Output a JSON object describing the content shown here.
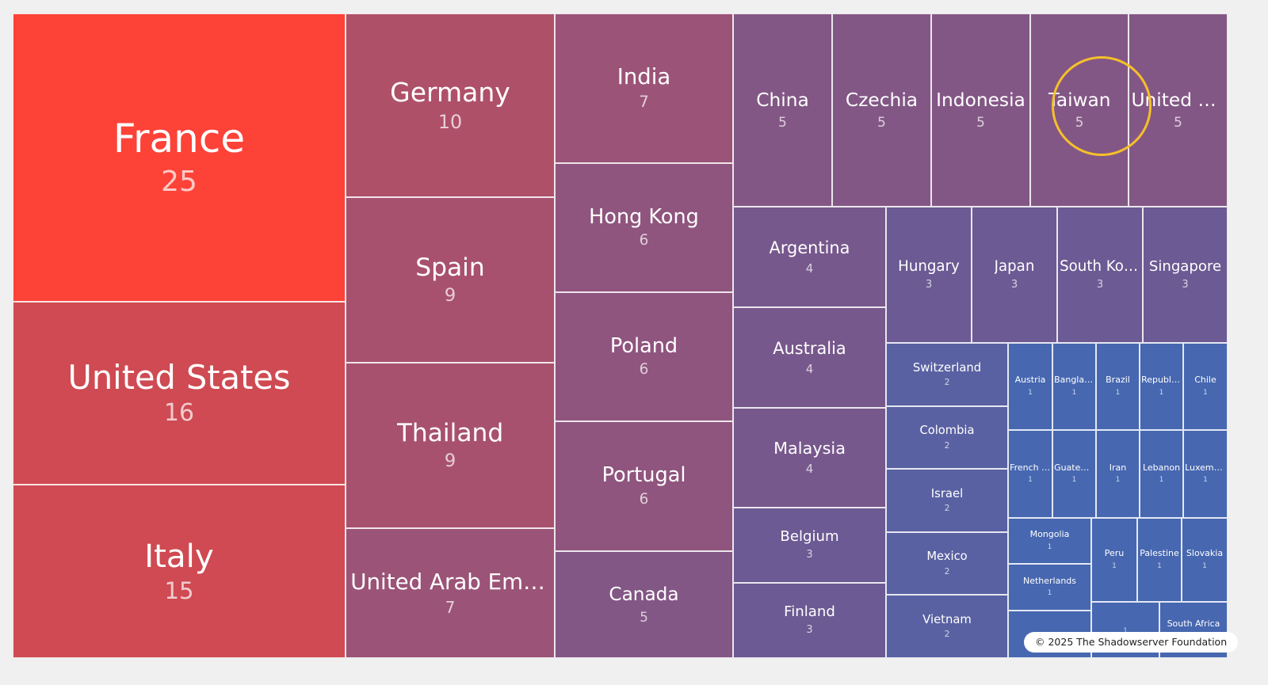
{
  "chart_data": {
    "type": "treemap",
    "title": "",
    "colors": {
      "max": "#fd4238",
      "high": "#cf4a52",
      "mid": "#9b5377",
      "low": "#6b5a93",
      "min": "#4767b0"
    },
    "items": [
      {
        "label": "France",
        "value": 25
      },
      {
        "label": "United States",
        "value": 16
      },
      {
        "label": "Italy",
        "value": 15
      },
      {
        "label": "Germany",
        "value": 10
      },
      {
        "label": "Spain",
        "value": 9
      },
      {
        "label": "Thailand",
        "value": 9
      },
      {
        "label": "United Arab Emirates",
        "value": 7
      },
      {
        "label": "India",
        "value": 7
      },
      {
        "label": "Hong Kong",
        "value": 6
      },
      {
        "label": "Poland",
        "value": 6
      },
      {
        "label": "Portugal",
        "value": 6
      },
      {
        "label": "Canada",
        "value": 5
      },
      {
        "label": "China",
        "value": 5
      },
      {
        "label": "Czechia",
        "value": 5
      },
      {
        "label": "Indonesia",
        "value": 5
      },
      {
        "label": "Taiwan",
        "value": 5
      },
      {
        "label": "United Kingdom",
        "value": 5
      },
      {
        "label": "Argentina",
        "value": 4
      },
      {
        "label": "Australia",
        "value": 4
      },
      {
        "label": "Malaysia",
        "value": 4
      },
      {
        "label": "Belgium",
        "value": 3
      },
      {
        "label": "Finland",
        "value": 3
      },
      {
        "label": "Hungary",
        "value": 3
      },
      {
        "label": "Japan",
        "value": 3
      },
      {
        "label": "South Korea",
        "value": 3
      },
      {
        "label": "Singapore",
        "value": 3
      },
      {
        "label": "Switzerland",
        "value": 2
      },
      {
        "label": "Colombia",
        "value": 2
      },
      {
        "label": "Israel",
        "value": 2
      },
      {
        "label": "Mexico",
        "value": 2
      },
      {
        "label": "Vietnam",
        "value": 2
      },
      {
        "label": "Austria",
        "value": 1
      },
      {
        "label": "Bangladesh",
        "value": 1
      },
      {
        "label": "Brazil",
        "value": 1
      },
      {
        "label": "Republic of Moldova",
        "value": 1
      },
      {
        "label": "Chile",
        "value": 1
      },
      {
        "label": "French Polynesia",
        "value": 1
      },
      {
        "label": "Guatemala",
        "value": 1
      },
      {
        "label": "Iran",
        "value": 1
      },
      {
        "label": "Lebanon",
        "value": 1
      },
      {
        "label": "Luxembourg",
        "value": 1
      },
      {
        "label": "Mongolia",
        "value": 1
      },
      {
        "label": "Netherlands",
        "value": 1
      },
      {
        "label": "Peru",
        "value": 1
      },
      {
        "label": "Palestine",
        "value": 1
      },
      {
        "label": "Slovakia",
        "value": 1
      },
      {
        "label": "",
        "value": 1
      },
      {
        "label": "",
        "value": 1
      },
      {
        "label": "South Africa",
        "value": 1
      }
    ],
    "highlighted": "Taiwan"
  },
  "credit": "© 2025 The Shadowserver Foundation"
}
